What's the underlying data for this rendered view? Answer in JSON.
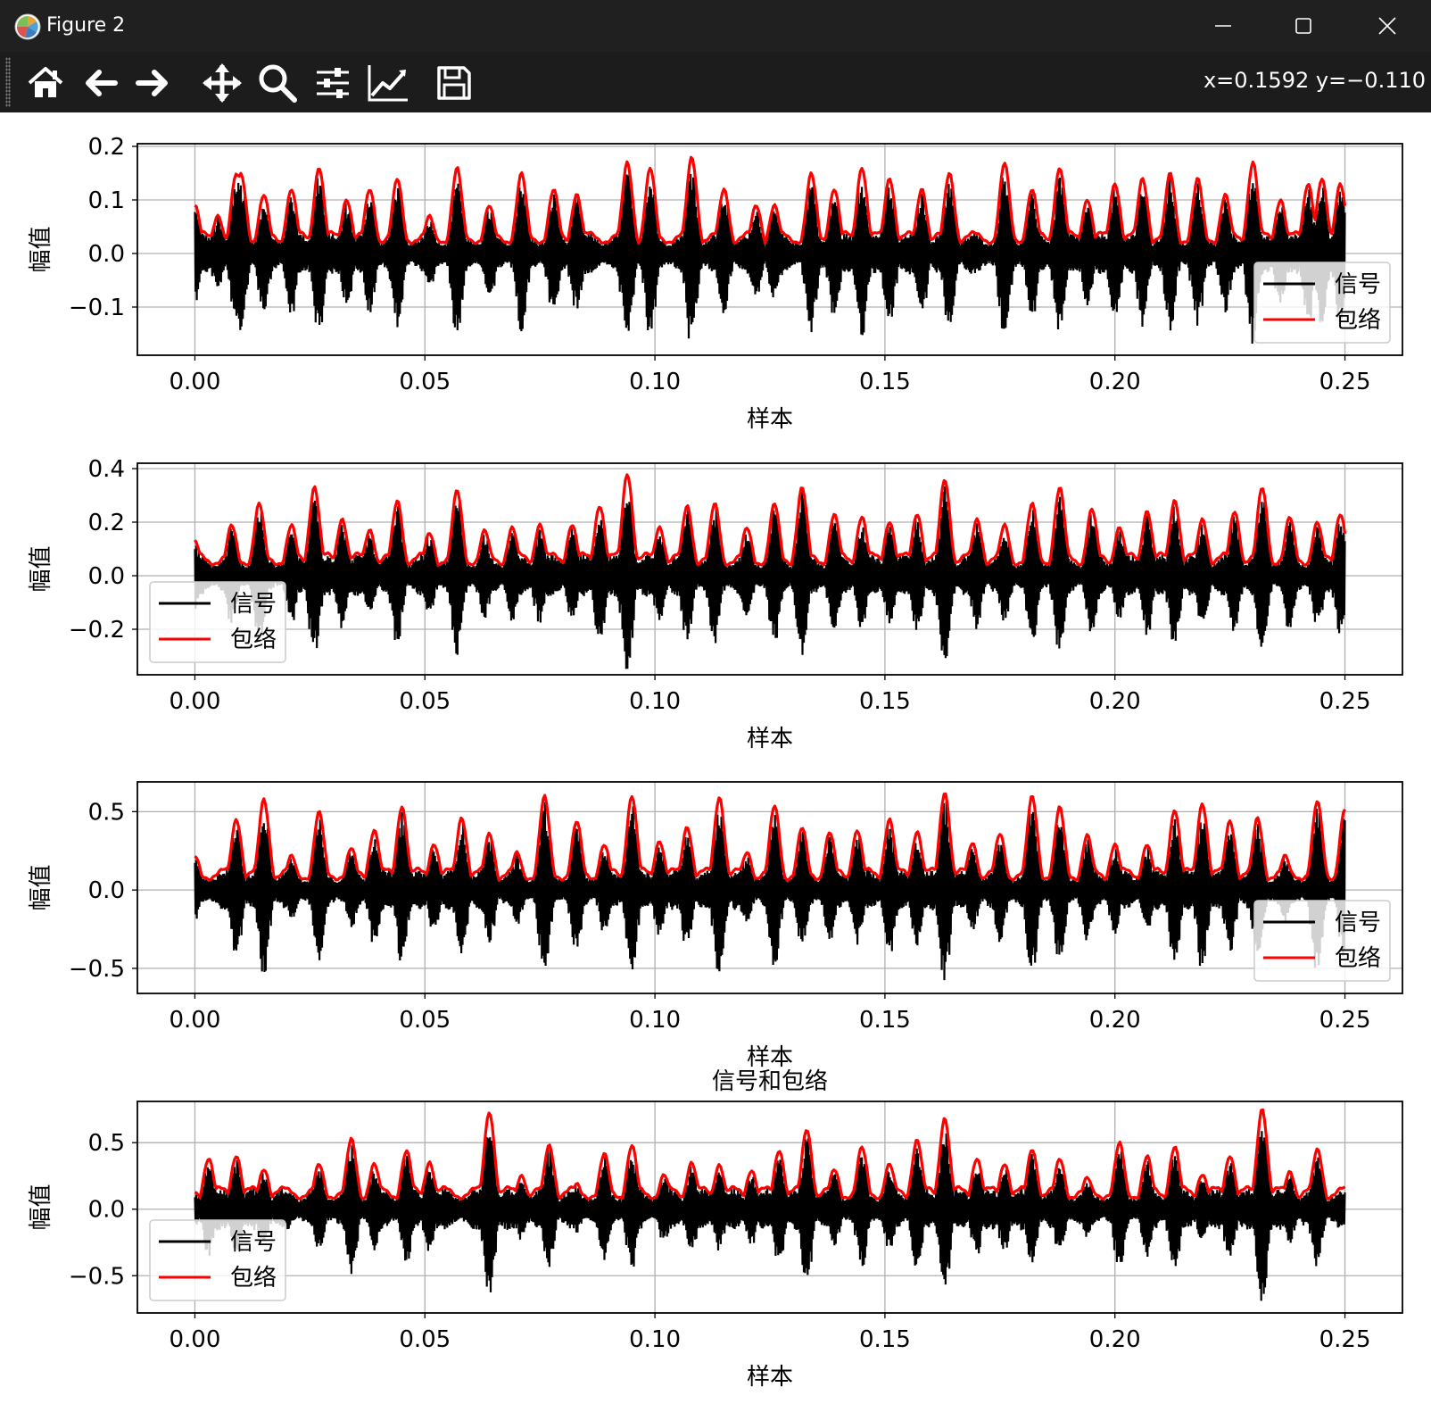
{
  "window": {
    "title": "Figure 2",
    "controls": [
      "minimize",
      "maximize",
      "close"
    ]
  },
  "toolbar": {
    "tools": [
      {
        "name": "home",
        "icon": "home-icon"
      },
      {
        "name": "back",
        "icon": "arrow-left-icon"
      },
      {
        "name": "forward",
        "icon": "arrow-right-icon"
      },
      {
        "name": "pan",
        "icon": "move-icon"
      },
      {
        "name": "zoom",
        "icon": "magnifier-icon"
      },
      {
        "name": "subplots",
        "icon": "sliders-icon"
      },
      {
        "name": "edit-axes",
        "icon": "line-chart-icon"
      },
      {
        "name": "save",
        "icon": "floppy-icon"
      }
    ],
    "coords": "x=0.1592 y=−0.110"
  },
  "colors": {
    "signal": "#000000",
    "envelope": "#ff0000",
    "grid": "#b0b0b0",
    "titlebar": "#202020",
    "toolbar": "#1c1c1c"
  },
  "chart_data": [
    {
      "type": "line",
      "ylabel": "幅值",
      "xlabel": "样本",
      "title": "",
      "xlim": [
        -0.0125,
        0.2625
      ],
      "ylim": [
        -0.19,
        0.205
      ],
      "xticks": [
        "0.00",
        "0.05",
        "0.10",
        "0.15",
        "0.20",
        "0.25"
      ],
      "yticks": [
        "−0.1",
        "0.0",
        "0.1",
        "0.2"
      ],
      "ytick_values": [
        -0.1,
        0.0,
        0.1,
        0.2
      ],
      "grid": true,
      "legend": {
        "position": "lower right",
        "entries": [
          "信号",
          "包络"
        ]
      },
      "peaks": {
        "x": [
          0.0,
          0.005,
          0.009,
          0.01,
          0.015,
          0.021,
          0.027,
          0.033,
          0.038,
          0.044,
          0.051,
          0.057,
          0.064,
          0.071,
          0.078,
          0.083,
          0.094,
          0.099,
          0.108,
          0.115,
          0.122,
          0.126,
          0.134,
          0.139,
          0.145,
          0.151,
          0.158,
          0.164,
          0.176,
          0.182,
          0.188,
          0.194,
          0.2,
          0.206,
          0.212,
          0.218,
          0.224,
          0.23,
          0.236,
          0.242,
          0.245,
          0.249
        ],
        "y": [
          0.09,
          0.07,
          0.15,
          0.15,
          0.11,
          0.12,
          0.16,
          0.1,
          0.12,
          0.14,
          0.07,
          0.16,
          0.09,
          0.15,
          0.12,
          0.11,
          0.17,
          0.16,
          0.18,
          0.12,
          0.09,
          0.09,
          0.15,
          0.12,
          0.16,
          0.14,
          0.12,
          0.15,
          0.17,
          0.12,
          0.16,
          0.1,
          0.13,
          0.14,
          0.15,
          0.14,
          0.11,
          0.17,
          0.1,
          0.13,
          0.14,
          0.13
        ]
      },
      "series": [
        {
          "name": "信号"
        },
        {
          "name": "包络"
        }
      ]
    },
    {
      "type": "line",
      "ylabel": "幅值",
      "xlabel": "样本",
      "title": "",
      "xlim": [
        -0.0125,
        0.2625
      ],
      "ylim": [
        -0.37,
        0.42
      ],
      "xticks": [
        "0.00",
        "0.05",
        "0.10",
        "0.15",
        "0.20",
        "0.25"
      ],
      "yticks": [
        "−0.2",
        "0.0",
        "0.2",
        "0.4"
      ],
      "ytick_values": [
        -0.2,
        0.0,
        0.2,
        0.4
      ],
      "grid": true,
      "legend": {
        "position": "lower left",
        "entries": [
          "信号",
          "包络"
        ]
      },
      "peaks": {
        "x": [
          0.0,
          0.008,
          0.014,
          0.021,
          0.026,
          0.032,
          0.038,
          0.044,
          0.051,
          0.057,
          0.063,
          0.069,
          0.075,
          0.082,
          0.088,
          0.094,
          0.101,
          0.107,
          0.113,
          0.12,
          0.126,
          0.132,
          0.139,
          0.145,
          0.151,
          0.157,
          0.163,
          0.17,
          0.176,
          0.182,
          0.188,
          0.195,
          0.201,
          0.207,
          0.213,
          0.219,
          0.226,
          0.232,
          0.238,
          0.244,
          0.249
        ],
        "y": [
          0.13,
          0.19,
          0.27,
          0.19,
          0.33,
          0.21,
          0.17,
          0.28,
          0.16,
          0.32,
          0.17,
          0.18,
          0.19,
          0.19,
          0.26,
          0.38,
          0.18,
          0.26,
          0.27,
          0.18,
          0.27,
          0.33,
          0.23,
          0.22,
          0.2,
          0.23,
          0.36,
          0.21,
          0.19,
          0.27,
          0.33,
          0.25,
          0.18,
          0.24,
          0.28,
          0.21,
          0.24,
          0.33,
          0.22,
          0.2,
          0.23
        ]
      },
      "series": [
        {
          "name": "信号"
        },
        {
          "name": "包络"
        }
      ]
    },
    {
      "type": "line",
      "ylabel": "幅值",
      "xlabel": "样本",
      "title": "",
      "xlim": [
        -0.0125,
        0.2625
      ],
      "ylim": [
        -0.66,
        0.69
      ],
      "xticks": [
        "0.00",
        "0.05",
        "0.10",
        "0.15",
        "0.20",
        "0.25"
      ],
      "yticks": [
        "−0.5",
        "0.0",
        "0.5"
      ],
      "ytick_values": [
        -0.5,
        0.0,
        0.5
      ],
      "grid": true,
      "legend": {
        "position": "lower right",
        "entries": [
          "信号",
          "包络"
        ]
      },
      "peaks": {
        "x": [
          0.0,
          0.009,
          0.015,
          0.021,
          0.027,
          0.034,
          0.039,
          0.045,
          0.052,
          0.058,
          0.064,
          0.07,
          0.076,
          0.083,
          0.089,
          0.095,
          0.101,
          0.107,
          0.114,
          0.12,
          0.126,
          0.132,
          0.138,
          0.144,
          0.151,
          0.157,
          0.163,
          0.169,
          0.175,
          0.182,
          0.188,
          0.194,
          0.2,
          0.207,
          0.213,
          0.219,
          0.225,
          0.231,
          0.237,
          0.244,
          0.25
        ],
        "y": [
          0.22,
          0.45,
          0.58,
          0.22,
          0.5,
          0.27,
          0.38,
          0.53,
          0.29,
          0.46,
          0.36,
          0.24,
          0.6,
          0.44,
          0.29,
          0.6,
          0.31,
          0.4,
          0.59,
          0.24,
          0.54,
          0.4,
          0.37,
          0.38,
          0.45,
          0.37,
          0.62,
          0.3,
          0.36,
          0.6,
          0.53,
          0.35,
          0.29,
          0.29,
          0.51,
          0.55,
          0.44,
          0.46,
          0.22,
          0.57,
          0.52
        ]
      },
      "series": [
        {
          "name": "信号"
        },
        {
          "name": "包络"
        }
      ]
    },
    {
      "type": "line",
      "ylabel": "幅值",
      "xlabel": "样本",
      "title": "信号和包络",
      "xlim": [
        -0.0125,
        0.2625
      ],
      "ylim": [
        -0.78,
        0.81
      ],
      "xticks": [
        "0.00",
        "0.05",
        "0.10",
        "0.15",
        "0.20",
        "0.25"
      ],
      "yticks": [
        "−0.5",
        "0.0",
        "0.5"
      ],
      "ytick_values": [
        -0.5,
        0.0,
        0.5
      ],
      "grid": true,
      "legend": {
        "position": "lower left",
        "entries": [
          "信号",
          "包络"
        ]
      },
      "peaks": {
        "x": [
          0.0,
          0.003,
          0.009,
          0.015,
          0.021,
          0.027,
          0.034,
          0.039,
          0.046,
          0.051,
          0.064,
          0.071,
          0.077,
          0.083,
          0.089,
          0.095,
          0.102,
          0.108,
          0.114,
          0.121,
          0.127,
          0.133,
          0.139,
          0.145,
          0.151,
          0.157,
          0.163,
          0.17,
          0.176,
          0.182,
          0.188,
          0.194,
          0.201,
          0.207,
          0.213,
          0.219,
          0.225,
          0.232,
          0.238,
          0.244,
          0.25
        ],
        "y": [
          0.1,
          0.38,
          0.4,
          0.3,
          0.13,
          0.34,
          0.53,
          0.34,
          0.44,
          0.35,
          0.73,
          0.25,
          0.48,
          0.19,
          0.42,
          0.48,
          0.26,
          0.35,
          0.33,
          0.29,
          0.44,
          0.6,
          0.3,
          0.47,
          0.34,
          0.52,
          0.68,
          0.38,
          0.34,
          0.45,
          0.38,
          0.24,
          0.5,
          0.4,
          0.47,
          0.26,
          0.4,
          0.75,
          0.28,
          0.45,
          0.1
        ]
      },
      "series": [
        {
          "name": "信号"
        },
        {
          "name": "包络"
        }
      ]
    }
  ]
}
